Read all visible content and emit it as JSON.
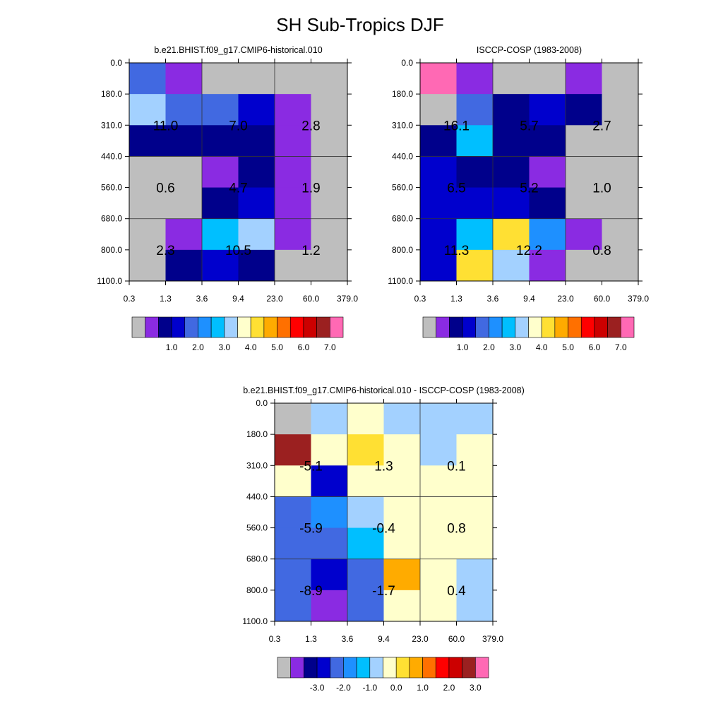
{
  "figure_title": "SH Sub-Tropics DJF",
  "colors": {
    "abs_palette": [
      "#bebebe",
      "#8a2be2",
      "#00008b",
      "#0000cd",
      "#4169e1",
      "#1e90ff",
      "#00bfff",
      "#a3d1ff",
      "#ffffcc",
      "#ffe033",
      "#ffab00",
      "#ff7000",
      "#ff0000",
      "#cc0000",
      "#9b2020",
      "#ff69b4"
    ],
    "diff_palette": [
      "#bebebe",
      "#8a2be2",
      "#00008b",
      "#0000cd",
      "#4169e1",
      "#1e90ff",
      "#00bfff",
      "#a3d1ff",
      "#ffffcc",
      "#ffe033",
      "#ffab00",
      "#ff7000",
      "#ff0000",
      "#cc0000",
      "#9b2020",
      "#ff69b4"
    ]
  },
  "chart_data": [
    {
      "type": "heatmap",
      "title": "b.e21.BHIST.f09_g17.CMIP6-historical.010",
      "x_tick_labels": [
        "0.3",
        "1.3",
        "3.6",
        "9.4",
        "23.0",
        "60.0",
        "379.0"
      ],
      "y_tick_labels": [
        "0.0",
        "180.0",
        "310.0",
        "440.0",
        "560.0",
        "680.0",
        "800.0",
        "1100.0"
      ],
      "cell_color_index": [
        [
          4,
          1,
          0,
          0,
          0,
          0
        ],
        [
          7,
          4,
          4,
          3,
          1,
          0
        ],
        [
          2,
          2,
          2,
          2,
          1,
          0
        ],
        [
          0,
          0,
          1,
          2,
          1,
          0
        ],
        [
          0,
          0,
          2,
          3,
          1,
          0
        ],
        [
          0,
          1,
          6,
          7,
          1,
          0
        ],
        [
          0,
          2,
          3,
          2,
          0,
          0
        ]
      ],
      "annotations": [
        {
          "text": "11.0",
          "col": 0,
          "row": 1
        },
        {
          "text": "7.0",
          "col": 2,
          "row": 1
        },
        {
          "text": "2.8",
          "col": 4,
          "row": 1
        },
        {
          "text": "0.6",
          "col": 0,
          "row": 3
        },
        {
          "text": "4.7",
          "col": 2,
          "row": 3
        },
        {
          "text": "1.9",
          "col": 4,
          "row": 3
        },
        {
          "text": "2.3",
          "col": 0,
          "row": 5
        },
        {
          "text": "10.5",
          "col": 2,
          "row": 5
        },
        {
          "text": "1.2",
          "col": 4,
          "row": 5
        }
      ],
      "colorbar_labels": [
        "1.0",
        "2.0",
        "3.0",
        "4.0",
        "5.0",
        "6.0",
        "7.0"
      ]
    },
    {
      "type": "heatmap",
      "title": "ISCCP-COSP (1983-2008)",
      "x_tick_labels": [
        "0.3",
        "1.3",
        "3.6",
        "9.4",
        "23.0",
        "60.0",
        "379.0"
      ],
      "y_tick_labels": [
        "0.0",
        "180.0",
        "310.0",
        "440.0",
        "560.0",
        "680.0",
        "800.0",
        "1100.0"
      ],
      "cell_color_index": [
        [
          15,
          1,
          0,
          0,
          1,
          0
        ],
        [
          0,
          4,
          2,
          3,
          2,
          0
        ],
        [
          2,
          6,
          2,
          2,
          0,
          0
        ],
        [
          3,
          2,
          2,
          1,
          0,
          0
        ],
        [
          3,
          3,
          3,
          2,
          0,
          0
        ],
        [
          3,
          6,
          9,
          5,
          1,
          0
        ],
        [
          3,
          9,
          7,
          1,
          0,
          0
        ]
      ],
      "annotations": [
        {
          "text": "16.1",
          "col": 0,
          "row": 1
        },
        {
          "text": "5.7",
          "col": 2,
          "row": 1
        },
        {
          "text": "2.7",
          "col": 4,
          "row": 1
        },
        {
          "text": "6.5",
          "col": 0,
          "row": 3
        },
        {
          "text": "5.2",
          "col": 2,
          "row": 3
        },
        {
          "text": "1.0",
          "col": 4,
          "row": 3
        },
        {
          "text": "11.3",
          "col": 0,
          "row": 5
        },
        {
          "text": "12.2",
          "col": 2,
          "row": 5
        },
        {
          "text": "0.8",
          "col": 4,
          "row": 5
        }
      ],
      "colorbar_labels": [
        "1.0",
        "2.0",
        "3.0",
        "4.0",
        "5.0",
        "6.0",
        "7.0"
      ]
    },
    {
      "type": "heatmap",
      "title": "b.e21.BHIST.f09_g17.CMIP6-historical.010 - ISCCP-COSP (1983-2008)",
      "x_tick_labels": [
        "0.3",
        "1.3",
        "3.6",
        "9.4",
        "23.0",
        "60.0",
        "379.0"
      ],
      "y_tick_labels": [
        "0.0",
        "180.0",
        "310.0",
        "440.0",
        "560.0",
        "680.0",
        "800.0",
        "1100.0"
      ],
      "cell_color_index": [
        [
          0,
          7,
          8,
          7,
          7,
          7
        ],
        [
          14,
          8,
          9,
          8,
          7,
          8
        ],
        [
          8,
          3,
          8,
          8,
          8,
          8
        ],
        [
          4,
          5,
          7,
          8,
          8,
          8
        ],
        [
          4,
          4,
          6,
          8,
          8,
          8
        ],
        [
          4,
          3,
          4,
          10,
          8,
          7
        ],
        [
          4,
          1,
          4,
          8,
          8,
          7
        ]
      ],
      "annotations": [
        {
          "text": "-5.1",
          "col": 0,
          "row": 1
        },
        {
          "text": "1.3",
          "col": 2,
          "row": 1
        },
        {
          "text": "0.1",
          "col": 4,
          "row": 1
        },
        {
          "text": "-5.9",
          "col": 0,
          "row": 3
        },
        {
          "text": "-0.4",
          "col": 2,
          "row": 3
        },
        {
          "text": "0.8",
          "col": 4,
          "row": 3
        },
        {
          "text": "-8.9",
          "col": 0,
          "row": 5
        },
        {
          "text": "-1.7",
          "col": 2,
          "row": 5
        },
        {
          "text": "0.4",
          "col": 4,
          "row": 5
        }
      ],
      "colorbar_labels": [
        "-3.0",
        "-2.0",
        "-1.0",
        "0.0",
        "1.0",
        "2.0",
        "3.0"
      ]
    }
  ]
}
